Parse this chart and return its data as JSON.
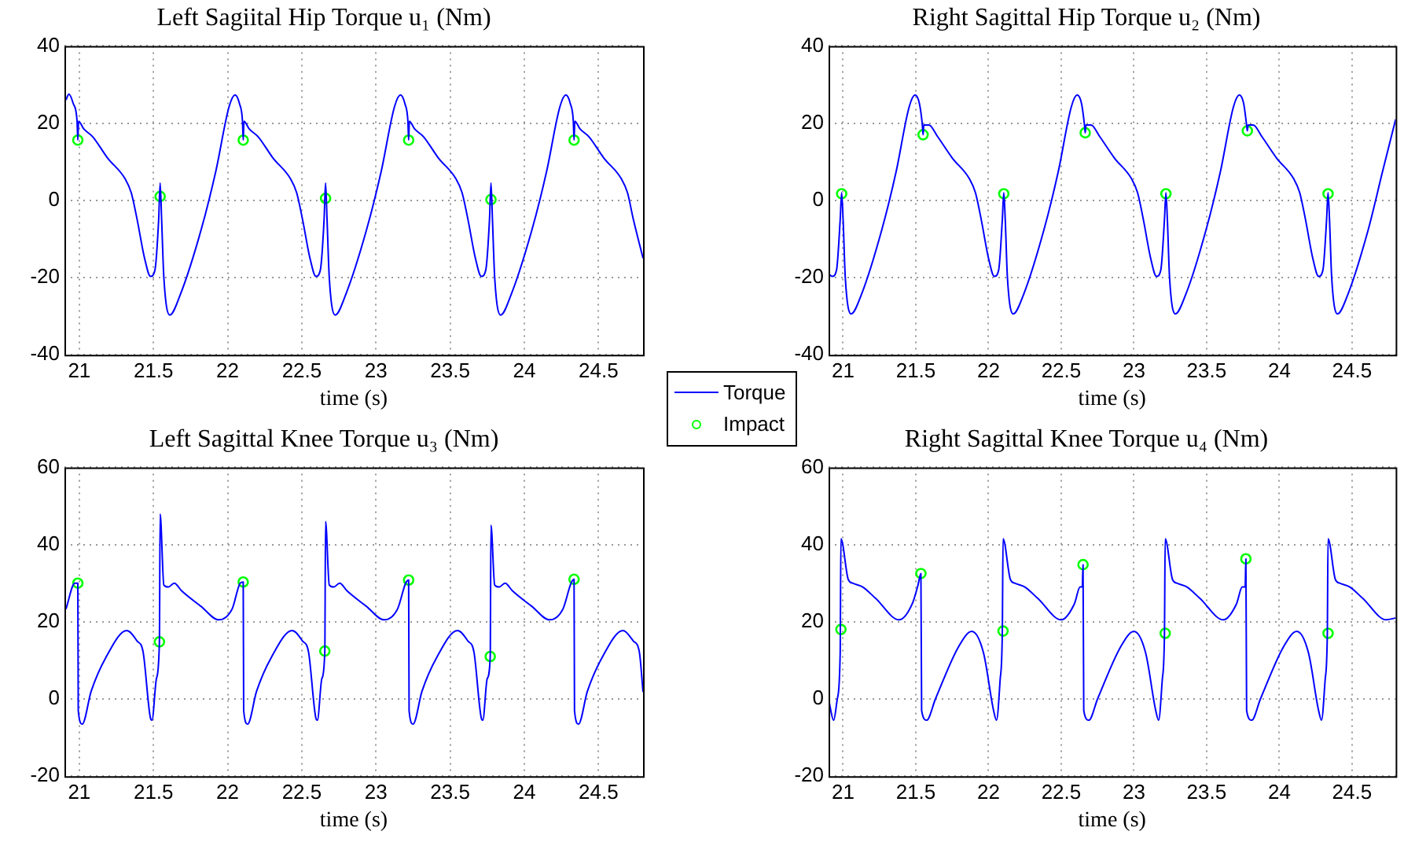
{
  "chart_data": [
    {
      "type": "line",
      "title": "Left Sagiital Hip Torque u₁ (Nm)",
      "xlabel": "time (s)",
      "xlim": [
        20.9,
        24.8
      ],
      "xticks": [
        21,
        21.5,
        22,
        22.5,
        23,
        23.5,
        24,
        24.5
      ],
      "ylim": [
        -40,
        40
      ],
      "yticks": [
        -40,
        -20,
        0,
        20,
        40
      ],
      "grid": true,
      "legend": "bottom right",
      "series": [
        {
          "name": "Torque",
          "color": "#0000ff",
          "x": [
            20.91,
            20.93,
            20.96,
            20.985,
            20.99,
            20.995,
            21.03,
            21.09,
            21.19,
            21.31,
            21.35,
            21.39,
            21.44,
            21.48,
            21.51,
            21.535,
            21.545,
            21.555,
            21.57,
            21.61,
            21.68,
            21.82,
            21.92,
            22.01,
            22.05,
            22.08,
            22.1,
            22.105,
            22.11,
            22.145,
            22.205,
            22.305,
            22.425,
            22.465,
            22.505,
            22.555,
            22.595,
            22.625,
            22.65,
            22.66,
            22.67,
            22.685,
            22.725,
            22.795,
            22.935,
            23.035,
            23.125,
            23.165,
            23.195,
            23.215,
            23.22,
            23.225,
            23.26,
            23.32,
            23.42,
            23.54,
            23.58,
            23.62,
            23.67,
            23.71,
            23.74,
            23.765,
            23.775,
            23.785,
            23.8,
            23.84,
            23.91,
            24.05,
            24.15,
            24.24,
            24.28,
            24.31,
            24.33,
            24.335,
            24.34,
            24.375,
            24.435,
            24.535,
            24.655,
            24.695,
            24.735,
            24.8
          ],
          "values": [
            26,
            27.5,
            25,
            20.5,
            15.6,
            20.5,
            18.5,
            16.5,
            11,
            5.5,
            2,
            -5,
            -15,
            -19.7,
            -18,
            -5,
            4.5,
            -5,
            -20,
            -29.7,
            -24.5,
            -7.8,
            7.5,
            24.3,
            27.3,
            25,
            20.5,
            15.6,
            20.5,
            18.5,
            16.5,
            11,
            5.5,
            2,
            -5,
            -15,
            -19.7,
            -18,
            -5,
            4.5,
            -5,
            -20,
            -29.7,
            -24.5,
            -7.8,
            7.5,
            24.3,
            27.3,
            25,
            20.5,
            15.6,
            20.5,
            18.5,
            16.5,
            11,
            5.5,
            2,
            -5,
            -15,
            -19.7,
            -18,
            -5,
            4.5,
            -5,
            -20,
            -29.7,
            -24.5,
            -7.8,
            7.5,
            24.3,
            27.3,
            25,
            20.5,
            15.6,
            20.5,
            18.5,
            16.5,
            11,
            5.5,
            2,
            -5,
            -15
          ]
        },
        {
          "name": "Impact",
          "type": "scatter",
          "color": "#00ff00",
          "marker": "circle",
          "x": [
            20.99,
            21.545,
            22.105,
            22.66,
            23.22,
            23.775,
            24.335
          ],
          "values": [
            15.6,
            1,
            15.6,
            0.5,
            15.6,
            0.2,
            15.6
          ]
        }
      ]
    },
    {
      "type": "line",
      "title": "Right Sagittal Hip Torque u₂ (Nm)",
      "xlabel": "time (s)",
      "xlim": [
        20.9,
        24.8
      ],
      "xticks": [
        21,
        21.5,
        22,
        22.5,
        23,
        23.5,
        24,
        24.5
      ],
      "ylim": [
        -40,
        40
      ],
      "yticks": [
        -40,
        -20,
        0,
        20,
        40
      ],
      "grid": true,
      "series": [
        {
          "color": "#0000ff",
          "x": [
            20.9,
            20.925,
            20.955,
            20.98,
            20.99,
            21.0,
            21.015,
            21.055,
            21.125,
            21.265,
            21.365,
            21.455,
            21.495,
            21.525,
            21.545,
            21.55,
            21.555,
            21.59,
            21.65,
            21.75,
            21.87,
            21.91,
            21.95,
            22.0,
            22.04,
            22.07,
            22.095,
            22.105,
            22.115,
            22.13,
            22.17,
            22.24,
            22.38,
            22.48,
            22.57,
            22.61,
            22.64,
            22.66,
            22.665,
            22.67,
            22.705,
            22.765,
            22.865,
            22.985,
            23.025,
            23.065,
            23.115,
            23.155,
            23.185,
            23.21,
            23.22,
            23.23,
            23.245,
            23.285,
            23.355,
            23.495,
            23.595,
            23.685,
            23.725,
            23.755,
            23.775,
            23.78,
            23.785,
            23.82,
            23.88,
            23.98,
            24.1,
            24.14,
            24.18,
            24.23,
            24.27,
            24.3,
            24.325,
            24.335,
            24.345,
            24.36,
            24.4,
            24.47,
            24.61,
            24.71,
            24.8
          ],
          "values": [
            -19,
            -19.7,
            -18,
            -5,
            2,
            -5,
            -20,
            -29.4,
            -24.5,
            -7.8,
            7.5,
            24.3,
            27.3,
            25,
            19.5,
            17,
            19.5,
            19.5,
            16.5,
            11,
            5.5,
            2,
            -5,
            -15,
            -19.7,
            -18,
            -5,
            2,
            -5,
            -20,
            -29.4,
            -24.5,
            -7.8,
            7.5,
            24.3,
            27.3,
            25,
            19.5,
            17.5,
            19.5,
            19.5,
            16.5,
            11,
            5.5,
            2,
            -5,
            -15,
            -19.7,
            -18,
            -5,
            2,
            -5,
            -20,
            -29.4,
            -24.5,
            -7.8,
            7.5,
            24.3,
            27.3,
            25,
            19.5,
            18,
            19.5,
            19.5,
            16.5,
            11,
            5.5,
            2,
            -5,
            -15,
            -19.7,
            -18,
            -5,
            2,
            -5,
            -20,
            -29.4,
            -24.5,
            -7.8,
            7.5,
            21
          ]
        },
        {
          "type": "scatter",
          "color": "#00ff00",
          "marker": "circle",
          "x": [
            20.99,
            21.55,
            22.105,
            22.665,
            23.22,
            23.78,
            24.335
          ],
          "values": [
            1.7,
            17,
            1.7,
            17.5,
            1.7,
            18,
            1.7
          ]
        }
      ]
    },
    {
      "type": "line",
      "title": "Left Sagittal Knee Torque u₃ (Nm)",
      "xlabel": "time (s)",
      "xlim": [
        20.9,
        24.8
      ],
      "xticks": [
        21,
        21.5,
        22,
        22.5,
        23,
        23.5,
        24,
        24.5
      ],
      "ylim": [
        -20,
        60
      ],
      "yticks": [
        -20,
        0,
        20,
        40,
        60
      ],
      "grid": true,
      "series": [
        {
          "color": "#0000ff",
          "x": [
            20.91,
            20.97,
            20.99,
            20.993,
            21.02,
            21.08,
            21.18,
            21.32,
            21.39,
            21.43,
            21.48,
            21.49,
            21.52,
            21.54,
            21.545,
            21.57,
            21.6,
            21.64,
            21.69,
            21.82,
            21.94,
            22.03,
            22.085,
            22.105,
            22.108,
            22.135,
            22.195,
            22.295,
            22.435,
            22.505,
            22.545,
            22.595,
            22.605,
            22.635,
            22.655,
            22.66,
            22.685,
            22.715,
            22.755,
            22.805,
            22.935,
            23.055,
            23.145,
            23.2,
            23.22,
            23.223,
            23.25,
            23.31,
            23.41,
            23.55,
            23.62,
            23.66,
            23.71,
            23.72,
            23.75,
            23.77,
            23.775,
            23.8,
            23.83,
            23.87,
            23.92,
            24.05,
            24.17,
            24.26,
            24.315,
            24.335,
            24.338,
            24.365,
            24.425,
            24.525,
            24.665,
            24.735,
            24.775,
            24.8
          ],
          "values": [
            23.3,
            30,
            30,
            -3,
            -6.5,
            2,
            10.8,
            17.7,
            15,
            12.2,
            -5,
            -5.5,
            5.3,
            14.8,
            47.9,
            29.5,
            29,
            30,
            28,
            24,
            20.5,
            23.3,
            30,
            30.3,
            -3,
            -6.5,
            2,
            10.8,
            17.7,
            15,
            12.2,
            -5,
            -5.5,
            5.3,
            12.4,
            46,
            29.5,
            29,
            30,
            28,
            24,
            20.5,
            23.3,
            30,
            30.8,
            -3,
            -6.5,
            2,
            10.8,
            17.7,
            15,
            12.2,
            -5,
            -5.5,
            5.3,
            11,
            45,
            29.5,
            29,
            30,
            28,
            24,
            20.5,
            23.3,
            30,
            31,
            -3,
            -6.5,
            2,
            10.8,
            17.7,
            15,
            12.2,
            1.8
          ]
        },
        {
          "type": "scatter",
          "color": "#00ff00",
          "marker": "circle",
          "x": [
            20.99,
            21.54,
            22.105,
            22.655,
            23.22,
            23.77,
            24.335
          ],
          "values": [
            30,
            14.8,
            30.3,
            12.4,
            30.8,
            11,
            31
          ]
        }
      ]
    },
    {
      "type": "line",
      "title": "Right Sagittal Knee Torque u₄ (Nm)",
      "xlabel": "time (s)",
      "xlim": [
        20.9,
        24.8
      ],
      "xticks": [
        21,
        21.5,
        22,
        22.5,
        23,
        23.5,
        24,
        24.5
      ],
      "ylim": [
        -20,
        60
      ],
      "yticks": [
        -20,
        0,
        20,
        40,
        60
      ],
      "grid": true,
      "series": [
        {
          "color": "#0000ff",
          "x": [
            20.9,
            20.935,
            20.96,
            20.98,
            20.985,
            21.035,
            21.065,
            21.135,
            21.225,
            21.385,
            21.475,
            21.515,
            21.535,
            21.54,
            21.575,
            21.635,
            21.795,
            21.885,
            21.965,
            22.035,
            22.055,
            22.08,
            22.095,
            22.1,
            22.15,
            22.18,
            22.25,
            22.34,
            22.5,
            22.59,
            22.63,
            22.645,
            22.65,
            22.655,
            22.69,
            22.75,
            22.91,
            23.0,
            23.08,
            23.15,
            23.17,
            23.195,
            23.21,
            23.215,
            23.265,
            23.295,
            23.365,
            23.455,
            23.615,
            23.705,
            23.745,
            23.765,
            23.77,
            23.775,
            23.81,
            23.87,
            24.03,
            24.12,
            24.2,
            24.27,
            24.29,
            24.315,
            24.33,
            24.335,
            24.385,
            24.415,
            24.485,
            24.575,
            24.735,
            24.8
          ],
          "values": [
            0,
            -5.5,
            0,
            12,
            41.5,
            31,
            30,
            29,
            26,
            20.5,
            24.6,
            29.5,
            32.5,
            -3,
            -5.5,
            0,
            13.6,
            17.5,
            12,
            -3,
            -5.5,
            5,
            17.6,
            41.5,
            31,
            30,
            29,
            26,
            20.5,
            24.6,
            29,
            29,
            34.8,
            -3,
            -5.5,
            0,
            13.6,
            17.5,
            12,
            -3,
            -5.5,
            5,
            17,
            41.5,
            31,
            30,
            29,
            26,
            20.5,
            24.6,
            29,
            29,
            36.3,
            -3,
            -5.5,
            0,
            13.6,
            17.5,
            12,
            -3,
            -5.5,
            5,
            17,
            41.5,
            31,
            30,
            29,
            26,
            20.5,
            21
          ]
        },
        {
          "type": "scatter",
          "color": "#00ff00",
          "marker": "circle",
          "x": [
            20.985,
            21.535,
            22.1,
            22.65,
            23.215,
            23.77,
            24.335
          ],
          "values": [
            18,
            32.5,
            17.6,
            34.8,
            17,
            36.3,
            17
          ]
        }
      ]
    }
  ]
}
